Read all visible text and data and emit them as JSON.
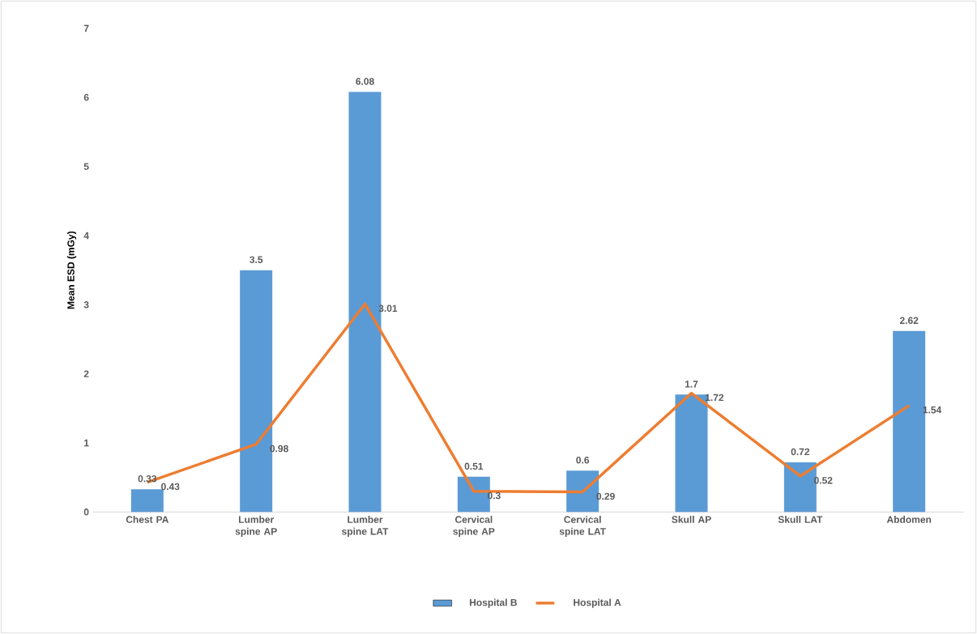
{
  "chart_data": {
    "type": "bar",
    "ylabel": "Mean ESD (mGy)",
    "categories": [
      "Chest PA",
      "Lumber spine AP",
      "Lumber spine LAT",
      "Cervical spine AP",
      "Cervical spine LAT",
      "Skull AP",
      "Skull LAT",
      "Abdomen"
    ],
    "series": [
      {
        "name": "Hospital B",
        "color": "#5b9bd5",
        "values": [
          0.33,
          3.5,
          6.08,
          0.51,
          0.6,
          1.7,
          0.72,
          2.62
        ]
      },
      {
        "name": "Hospital A",
        "type": "line",
        "color": "#ed7d31",
        "values": [
          0.43,
          0.98,
          3.01,
          0.3,
          0.29,
          1.72,
          0.52,
          1.54
        ]
      }
    ],
    "ylim": [
      0,
      7
    ],
    "yticks": [
      0,
      1,
      2,
      3,
      4,
      5,
      6,
      7
    ],
    "data_labels": true,
    "legend": "bottom"
  }
}
